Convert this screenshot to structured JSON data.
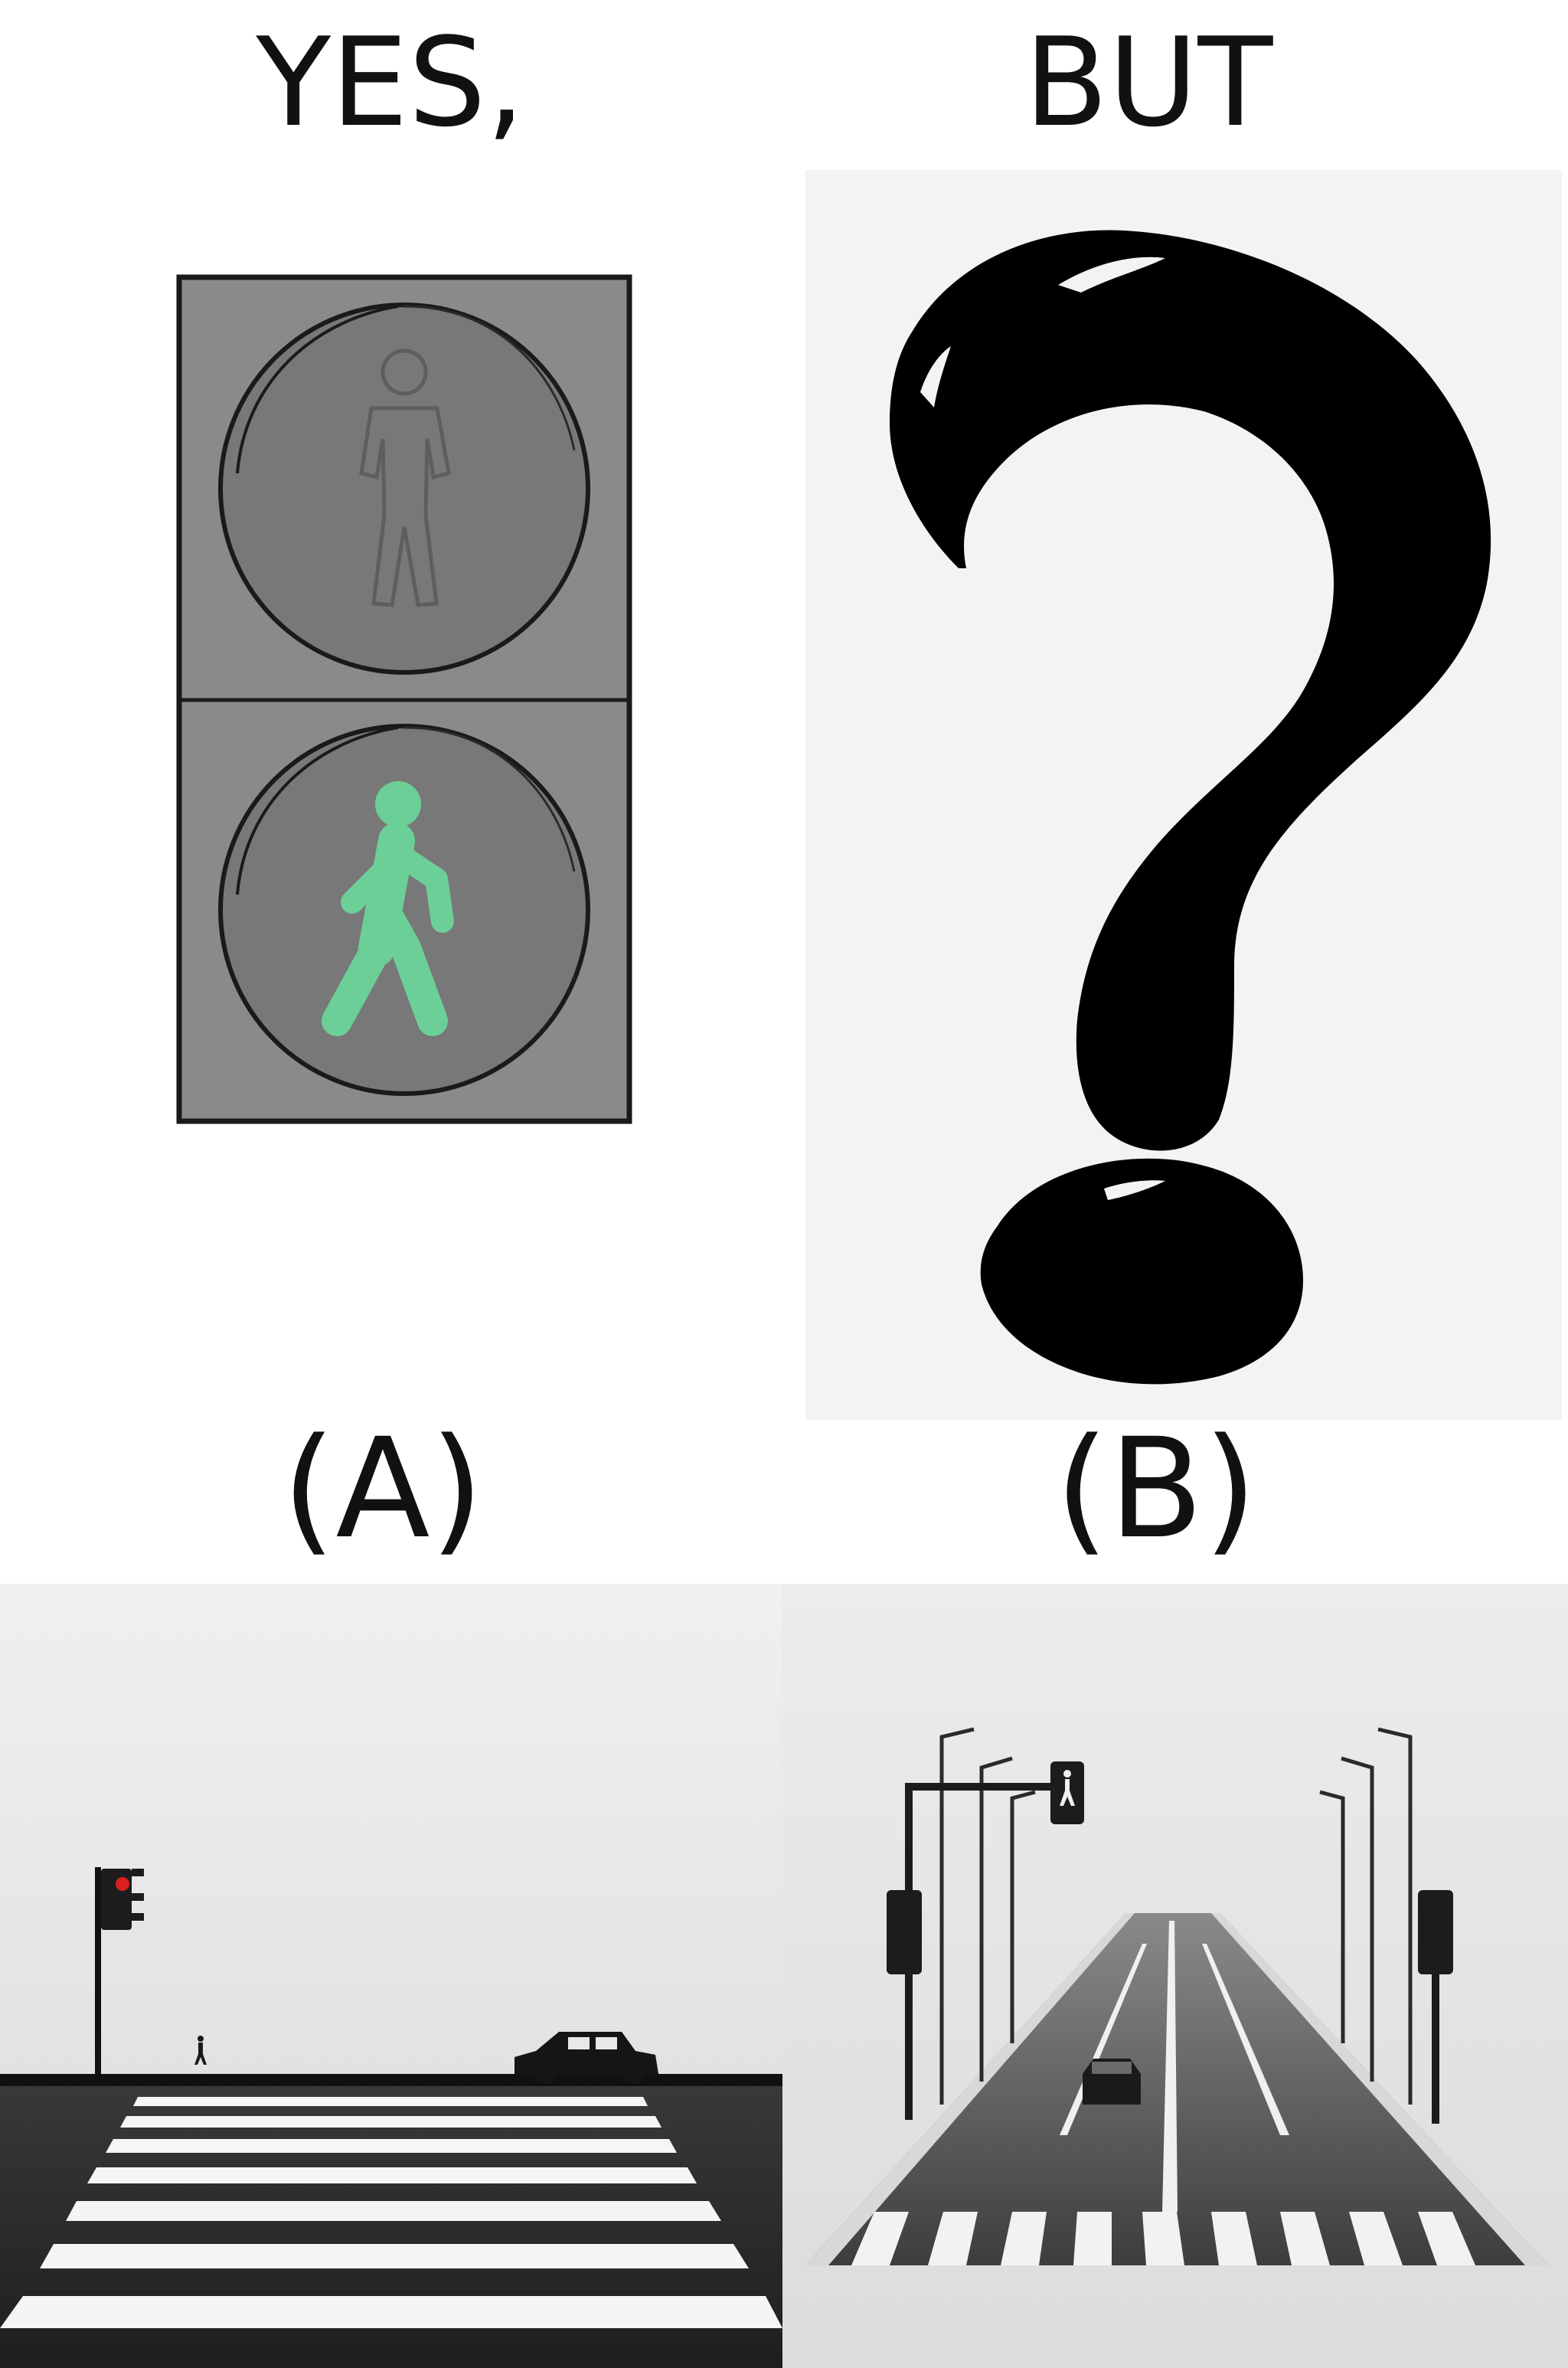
{
  "captions": {
    "yes": "YES,",
    "but": "BUT",
    "label_a": "(A)",
    "label_b": "(B)"
  },
  "panels": {
    "signal": {
      "icon": "pedestrian-signal-icon",
      "active_light": "walk",
      "walk_color": "#6ccf98"
    },
    "question": {
      "icon": "question-mark-icon"
    },
    "scene_a": {
      "icon": "crosswalk-scene-icon",
      "signal_color": "#d92020"
    },
    "scene_b": {
      "icon": "road-crosswalk-scene-icon"
    }
  },
  "colors": {
    "text": "#111111",
    "signal_housing": "#888888",
    "question_ink": "#000000"
  }
}
